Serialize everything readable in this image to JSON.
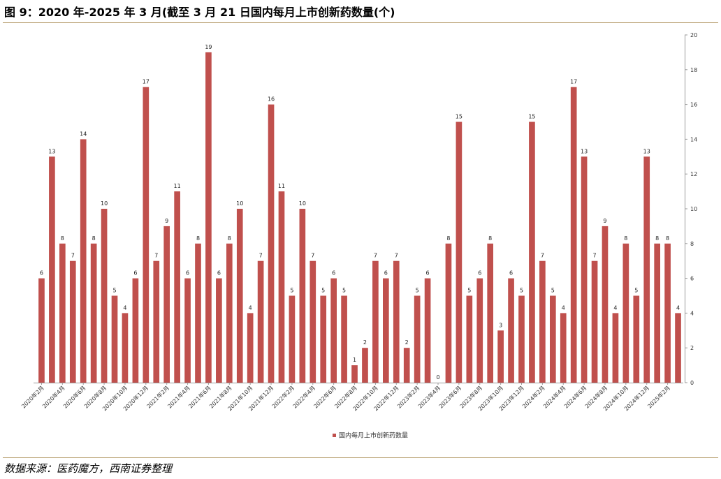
{
  "figure": {
    "title": "图 9：2020 年-2025 年 3 月(截至 3 月 21 日国内每月上市创新药数量(个)",
    "source": "数据来源：医药魔方，西南证券整理"
  },
  "colors": {
    "bar": "#c0504d",
    "rule": "#b8a070"
  },
  "chart_data": {
    "type": "bar",
    "categories": [
      "2020年2月",
      "2020年3月",
      "2020年4月",
      "2020年5月",
      "2020年6月",
      "2020年7月",
      "2020年8月",
      "2020年9月",
      "2020年10月",
      "2020年11月",
      "2020年12月",
      "2021年1月",
      "2021年2月",
      "2021年3月",
      "2021年4月",
      "2021年5月",
      "2021年6月",
      "2021年7月",
      "2021年8月",
      "2021年9月",
      "2021年10月",
      "2021年11月",
      "2021年12月",
      "2022年1月",
      "2022年2月",
      "2022年3月",
      "2022年4月",
      "2022年5月",
      "2022年6月",
      "2022年7月",
      "2022年8月",
      "2022年9月",
      "2022年10月",
      "2022年11月",
      "2022年12月",
      "2023年1月",
      "2023年2月",
      "2023年3月",
      "2023年4月",
      "2023年5月",
      "2023年6月",
      "2023年7月",
      "2023年8月",
      "2023年9月",
      "2023年10月",
      "2023年11月",
      "2023年12月",
      "2024年1月",
      "2024年2月",
      "2024年3月",
      "2024年4月",
      "2024年5月",
      "2024年6月",
      "2024年7月",
      "2024年8月",
      "2024年9月",
      "2024年10月",
      "2024年11月",
      "2024年12月",
      "2025年1月",
      "2025年2月",
      "2025年3月"
    ],
    "tick_labels": [
      "2020年2月",
      "2020年4月",
      "2020年6月",
      "2020年8月",
      "2020年10月",
      "2020年12月",
      "2021年2月",
      "2021年4月",
      "2021年6月",
      "2021年8月",
      "2021年10月",
      "2021年12月",
      "2022年2月",
      "2022年4月",
      "2022年6月",
      "2022年8月",
      "2022年10月",
      "2022年12月",
      "2023年2月",
      "2023年4月",
      "2023年6月",
      "2023年8月",
      "2023年10月",
      "2023年12月",
      "2024年2月",
      "2024年4月",
      "2024年6月",
      "2024年8月",
      "2024年10月",
      "2024年12月",
      "2025年2月"
    ],
    "series": [
      {
        "name": "国内每月上市创新药数量",
        "values": [
          6,
          13,
          8,
          7,
          14,
          8,
          10,
          5,
          4,
          6,
          17,
          7,
          9,
          11,
          6,
          8,
          19,
          6,
          8,
          10,
          4,
          7,
          16,
          11,
          5,
          10,
          7,
          5,
          6,
          5,
          1,
          2,
          7,
          6,
          7,
          2,
          5,
          6,
          0,
          8,
          15,
          5,
          6,
          8,
          3,
          6,
          5,
          15,
          7,
          5,
          4,
          17,
          13,
          7,
          9,
          4,
          8,
          5,
          13,
          8,
          8,
          4
        ]
      }
    ],
    "ylim": [
      0,
      20
    ],
    "yticks": [
      0,
      2,
      4,
      6,
      8,
      10,
      12,
      14,
      16,
      18,
      20
    ],
    "y_axis_side": "right",
    "grid": false,
    "legend_position": "bottom-center"
  }
}
